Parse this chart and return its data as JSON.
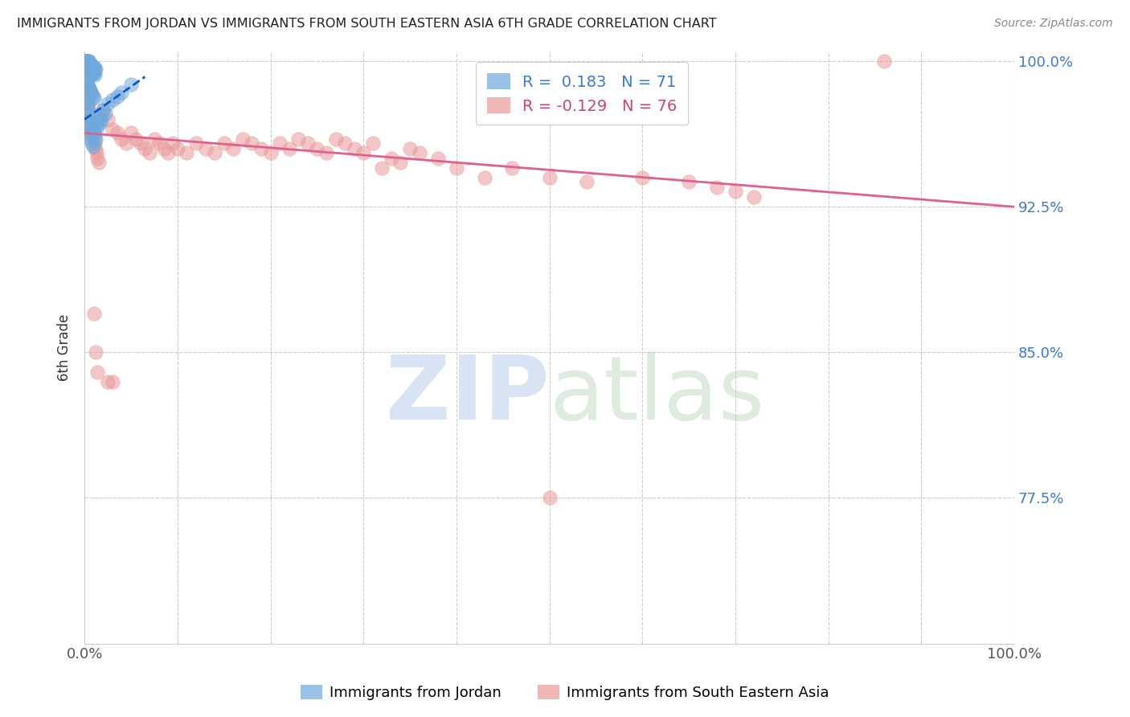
{
  "title": "IMMIGRANTS FROM JORDAN VS IMMIGRANTS FROM SOUTH EASTERN ASIA 6TH GRADE CORRELATION CHART",
  "source": "Source: ZipAtlas.com",
  "ylabel": "6th Grade",
  "xlim": [
    0.0,
    1.0
  ],
  "ylim": [
    0.7,
    1.005
  ],
  "yticks": [
    1.0,
    0.925,
    0.85,
    0.775
  ],
  "ytick_labels": [
    "100.0%",
    "92.5%",
    "85.0%",
    "77.5%"
  ],
  "jordan_R": 0.183,
  "jordan_N": 71,
  "sea_R": -0.129,
  "sea_N": 76,
  "jordan_color": "#6fa8dc",
  "sea_color": "#ea9999",
  "trend_jordan_color": "#1155cc",
  "trend_sea_color": "#e06090",
  "legend_jordan": "Immigrants from Jordan",
  "legend_sea": "Immigrants from South Eastern Asia",
  "jordan_x": [
    0.001,
    0.001,
    0.002,
    0.002,
    0.002,
    0.003,
    0.003,
    0.003,
    0.003,
    0.004,
    0.004,
    0.004,
    0.005,
    0.005,
    0.005,
    0.006,
    0.006,
    0.006,
    0.007,
    0.007,
    0.007,
    0.008,
    0.008,
    0.009,
    0.009,
    0.01,
    0.01,
    0.011,
    0.011,
    0.012,
    0.002,
    0.003,
    0.004,
    0.005,
    0.006,
    0.007,
    0.008,
    0.009,
    0.01,
    0.001,
    0.001,
    0.002,
    0.002,
    0.003,
    0.003,
    0.004,
    0.004,
    0.005,
    0.005,
    0.006,
    0.006,
    0.007,
    0.007,
    0.008,
    0.009,
    0.01,
    0.011,
    0.012,
    0.013,
    0.014,
    0.015,
    0.016,
    0.017,
    0.018,
    0.02,
    0.022,
    0.025,
    0.03,
    0.035,
    0.04,
    0.05
  ],
  "jordan_y": [
    1.0,
    1.0,
    1.0,
    1.0,
    0.998,
    1.0,
    0.998,
    0.996,
    0.995,
    1.0,
    0.998,
    0.995,
    1.0,
    0.998,
    0.995,
    0.998,
    0.996,
    0.993,
    0.998,
    0.996,
    0.993,
    0.997,
    0.994,
    0.997,
    0.994,
    0.997,
    0.994,
    0.996,
    0.993,
    0.996,
    0.99,
    0.988,
    0.987,
    0.986,
    0.985,
    0.984,
    0.983,
    0.982,
    0.981,
    0.988,
    0.985,
    0.983,
    0.98,
    0.978,
    0.976,
    0.974,
    0.972,
    0.97,
    0.968,
    0.966,
    0.964,
    0.962,
    0.96,
    0.958,
    0.956,
    0.964,
    0.962,
    0.96,
    0.968,
    0.966,
    0.97,
    0.968,
    0.972,
    0.97,
    0.975,
    0.973,
    0.978,
    0.98,
    0.982,
    0.984,
    0.988
  ],
  "sea_x": [
    0.001,
    0.002,
    0.003,
    0.004,
    0.005,
    0.006,
    0.007,
    0.008,
    0.009,
    0.01,
    0.011,
    0.012,
    0.013,
    0.014,
    0.015,
    0.02,
    0.025,
    0.03,
    0.035,
    0.04,
    0.045,
    0.05,
    0.055,
    0.06,
    0.065,
    0.07,
    0.075,
    0.08,
    0.085,
    0.09,
    0.095,
    0.1,
    0.11,
    0.12,
    0.13,
    0.14,
    0.15,
    0.16,
    0.17,
    0.18,
    0.19,
    0.2,
    0.21,
    0.22,
    0.23,
    0.24,
    0.25,
    0.26,
    0.27,
    0.28,
    0.29,
    0.3,
    0.31,
    0.32,
    0.33,
    0.34,
    0.35,
    0.36,
    0.38,
    0.4,
    0.43,
    0.46,
    0.5,
    0.54,
    0.6,
    0.65,
    0.68,
    0.7,
    0.72,
    0.86,
    0.01,
    0.012,
    0.014,
    0.025,
    0.03,
    0.5
  ],
  "sea_y": [
    0.99,
    0.985,
    0.98,
    0.978,
    0.975,
    0.97,
    0.968,
    0.965,
    0.963,
    0.96,
    0.958,
    0.955,
    0.953,
    0.95,
    0.948,
    0.975,
    0.97,
    0.965,
    0.963,
    0.96,
    0.958,
    0.963,
    0.96,
    0.958,
    0.955,
    0.953,
    0.96,
    0.958,
    0.955,
    0.953,
    0.958,
    0.955,
    0.953,
    0.958,
    0.955,
    0.953,
    0.958,
    0.955,
    0.96,
    0.958,
    0.955,
    0.953,
    0.958,
    0.955,
    0.96,
    0.958,
    0.955,
    0.953,
    0.96,
    0.958,
    0.955,
    0.953,
    0.958,
    0.945,
    0.95,
    0.948,
    0.955,
    0.953,
    0.95,
    0.945,
    0.94,
    0.945,
    0.94,
    0.938,
    0.94,
    0.938,
    0.935,
    0.933,
    0.93,
    1.0,
    0.87,
    0.85,
    0.84,
    0.835,
    0.835,
    0.775
  ],
  "sea_trend_x0": 0.0,
  "sea_trend_x1": 1.0,
  "sea_trend_y0": 0.963,
  "sea_trend_y1": 0.925,
  "jordan_trend_x0": 0.0,
  "jordan_trend_x1": 0.065,
  "jordan_trend_y0": 0.97,
  "jordan_trend_y1": 0.992
}
